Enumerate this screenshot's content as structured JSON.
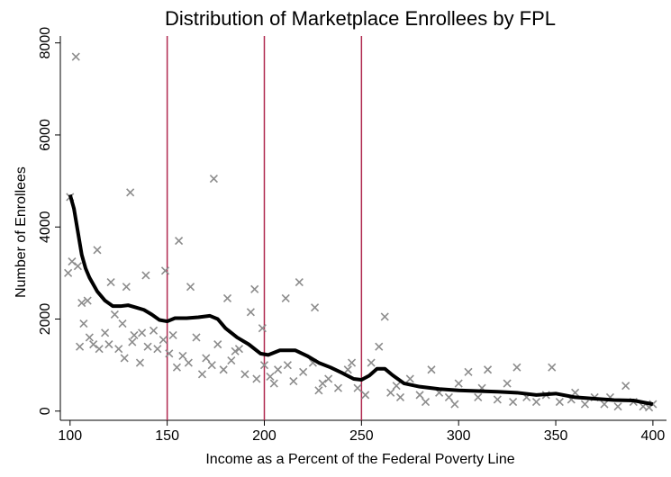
{
  "chart_data": {
    "type": "scatter",
    "title": "Distribution of Marketplace Enrollees by FPL",
    "x_label": "Income as a Percent of the Federal Poverty Line",
    "y_label": "Number of Enrollees",
    "xlim": [
      95,
      407
    ],
    "ylim": [
      -200,
      8150
    ],
    "xticks": [
      100,
      150,
      200,
      250,
      300,
      350,
      400
    ],
    "yticks": [
      0,
      2000,
      4000,
      6000,
      8000
    ],
    "reference_lines": {
      "color": "#b0294f",
      "x": [
        150,
        200,
        250
      ]
    },
    "scatter": {
      "color": "#8c8c8c",
      "x": [
        103,
        174,
        131,
        100,
        101,
        99,
        104,
        114,
        156,
        139,
        149,
        162,
        195,
        181,
        211,
        218,
        226,
        193,
        121,
        129,
        106,
        109,
        107,
        112,
        118,
        125,
        128,
        133,
        136,
        140,
        143,
        148,
        151,
        153,
        158,
        161,
        165,
        170,
        176,
        179,
        183,
        187,
        190,
        199,
        200,
        203,
        207,
        212,
        215,
        220,
        225,
        230,
        233,
        238,
        243,
        245,
        248,
        255,
        259,
        262,
        265,
        270,
        275,
        280,
        286,
        290,
        295,
        300,
        305,
        310,
        315,
        320,
        325,
        330,
        335,
        340,
        348,
        352,
        360,
        365,
        370,
        378,
        386,
        390,
        395,
        400,
        105,
        110,
        115,
        120,
        123,
        127,
        132,
        137,
        145,
        155,
        168,
        173,
        185,
        196,
        205,
        228,
        252,
        268,
        283,
        298,
        312,
        328,
        345,
        358,
        375,
        382,
        398
      ],
      "values": [
        7700,
        5050,
        4750,
        4650,
        3250,
        3000,
        3150,
        3500,
        3700,
        2950,
        3050,
        2700,
        2650,
        2450,
        2450,
        2800,
        2250,
        2150,
        2800,
        2700,
        2350,
        2400,
        1900,
        1450,
        1700,
        1350,
        1150,
        1650,
        1050,
        1400,
        1750,
        1550,
        1250,
        1650,
        1200,
        1050,
        1600,
        1150,
        1450,
        900,
        1100,
        1350,
        800,
        1800,
        1000,
        750,
        900,
        1000,
        650,
        850,
        1050,
        600,
        700,
        500,
        900,
        1050,
        500,
        1050,
        1400,
        2050,
        400,
        300,
        700,
        350,
        900,
        400,
        300,
        600,
        850,
        300,
        900,
        250,
        600,
        950,
        300,
        200,
        950,
        200,
        400,
        150,
        300,
        300,
        550,
        200,
        100,
        150,
        1400,
        1600,
        1350,
        1450,
        2100,
        1900,
        1500,
        1700,
        1350,
        950,
        800,
        1000,
        1300,
        700,
        600,
        450,
        350,
        550,
        200,
        150,
        500,
        200,
        350,
        250,
        150,
        100,
        80
      ]
    },
    "line": {
      "color": "#000000",
      "x": [
        100,
        102,
        104,
        106,
        108,
        110,
        114,
        118,
        122,
        126,
        130,
        134,
        138,
        142,
        146,
        150,
        154,
        160,
        166,
        172,
        176,
        180,
        186,
        192,
        198,
        202,
        208,
        216,
        222,
        228,
        234,
        240,
        246,
        250,
        254,
        258,
        262,
        266,
        272,
        280,
        290,
        300,
        320,
        330,
        340,
        350,
        360,
        370,
        380,
        390,
        400
      ],
      "values": [
        4700,
        4400,
        3900,
        3400,
        3100,
        2900,
        2600,
        2400,
        2280,
        2280,
        2300,
        2250,
        2200,
        2100,
        1980,
        1950,
        2020,
        2020,
        2040,
        2070,
        2000,
        1800,
        1600,
        1450,
        1250,
        1220,
        1320,
        1320,
        1200,
        1050,
        950,
        830,
        700,
        680,
        770,
        920,
        920,
        780,
        600,
        530,
        480,
        450,
        420,
        400,
        350,
        380,
        300,
        270,
        240,
        230,
        150
      ]
    }
  }
}
